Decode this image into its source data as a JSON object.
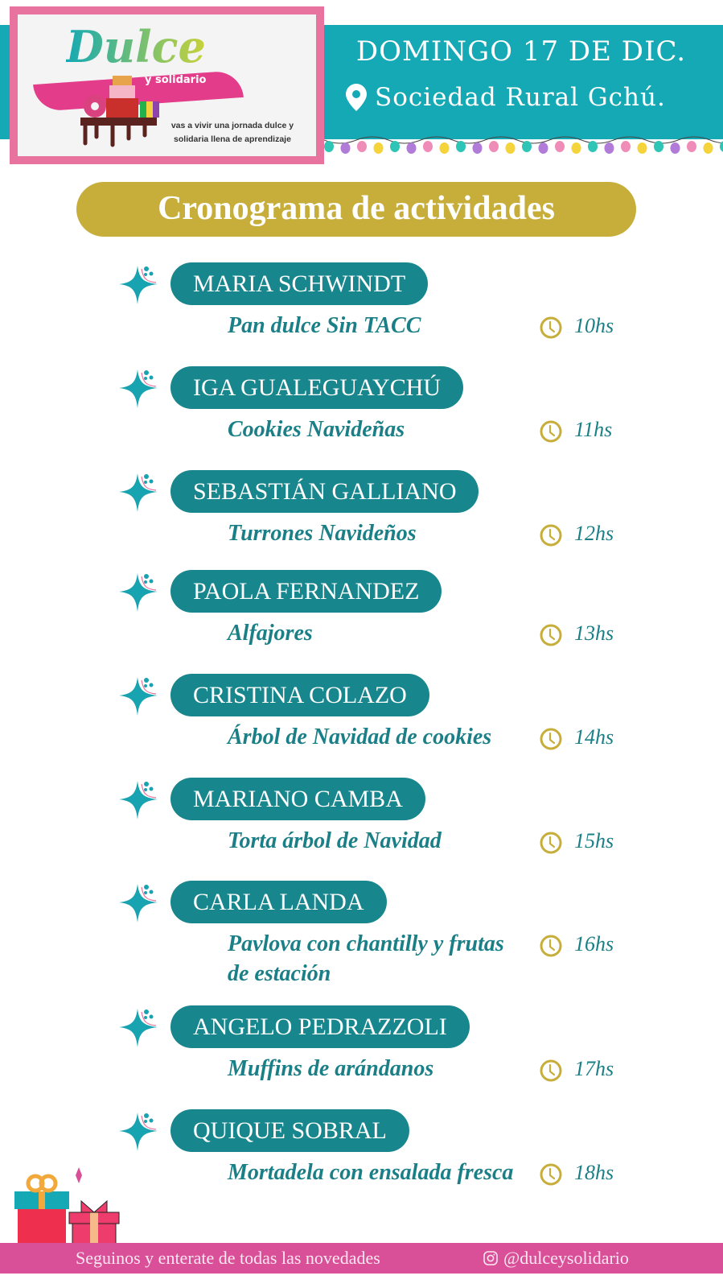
{
  "header": {
    "logo_text": "Dulce",
    "logo_subtext": "y solidario",
    "tagline": "vas a vivir una jornada dulce y solidaria llena de aprendizaje",
    "date": "DOMINGO 17 DE DIC.",
    "location": "Sociedad Rural Gchú.",
    "location_icon": "map-pin-icon"
  },
  "title": "Cronograma de actividades",
  "colors": {
    "teal": "#18868d",
    "band": "#15a9b5",
    "gold": "#c7ae3a",
    "pink": "#d94f98"
  },
  "schedule": [
    {
      "name": "MARIA SCHWINDT",
      "activity": "Pan dulce Sin TACC",
      "time": "10hs"
    },
    {
      "name": "IGA GUALEGUAYCHÚ",
      "activity": "Cookies Navideñas",
      "time": "11hs"
    },
    {
      "name": "SEBASTIÁN GALLIANO",
      "activity": "Turrones Navideños",
      "time": "12hs"
    },
    {
      "name": "PAOLA FERNANDEZ",
      "activity": "Alfajores",
      "time": "13hs"
    },
    {
      "name": "CRISTINA COLAZO",
      "activity": "Árbol de Navidad de cookies",
      "time": "14hs"
    },
    {
      "name": "MARIANO CAMBA",
      "activity": "Torta árbol de Navidad",
      "time": "15hs"
    },
    {
      "name": "CARLA LANDA",
      "activity": "Pavlova con chantilly y frutas de estación",
      "time": "16hs"
    },
    {
      "name": "ANGELO PEDRAZZOLI",
      "activity": "Muffins de arándanos",
      "time": "17hs"
    },
    {
      "name": "QUIQUE SOBRAL",
      "activity": "Mortadela con ensalada fresca",
      "time": "18hs"
    }
  ],
  "footer": {
    "text": "Seguinos y enterate de todas las novedades",
    "handle": "@dulceysolidario",
    "handle_icon": "instagram-icon"
  }
}
